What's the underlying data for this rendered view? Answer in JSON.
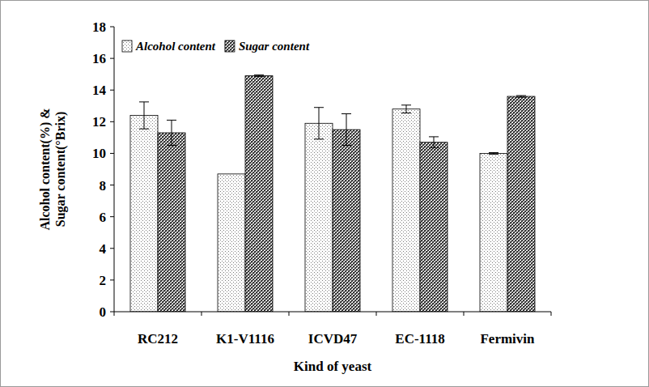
{
  "chart_data": {
    "type": "bar",
    "x_label": "Kind of yeast",
    "y_label": "Alcohol content(%) &\nSugar content(°Brix)",
    "categories": [
      "RC212",
      "K1-V1116",
      "ICVD47",
      "EC-1118",
      "Fermivin"
    ],
    "series": [
      {
        "name": "Alcohol content",
        "color": "#7a7a7a",
        "values": [
          12.4,
          8.7,
          11.9,
          12.8,
          10.0
        ],
        "errors": [
          0.85,
          0,
          1.0,
          0.25,
          0.05
        ]
      },
      {
        "name": "Sugar content",
        "color": "#3a3a3a",
        "values": [
          11.3,
          14.9,
          11.5,
          10.7,
          13.6
        ],
        "errors": [
          0.8,
          0.05,
          1.0,
          0.35,
          0.05
        ]
      }
    ],
    "ylim": [
      0,
      18
    ],
    "yticks": [
      0,
      2,
      4,
      6,
      8,
      10,
      12,
      14,
      16,
      18
    ],
    "grid": false,
    "legend": "upper left"
  }
}
